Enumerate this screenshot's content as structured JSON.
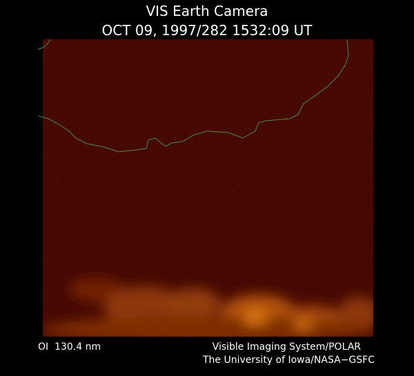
{
  "header": {
    "title": "VIS Earth Camera",
    "subtitle": "OCT 09, 1997/282 1532:09 UT"
  },
  "footer": {
    "filter": "OI  130.4 nm",
    "credit": [
      "Visible Imaging System/POLAR",
      "The University of Iowa/NASA−GSFC"
    ]
  }
}
